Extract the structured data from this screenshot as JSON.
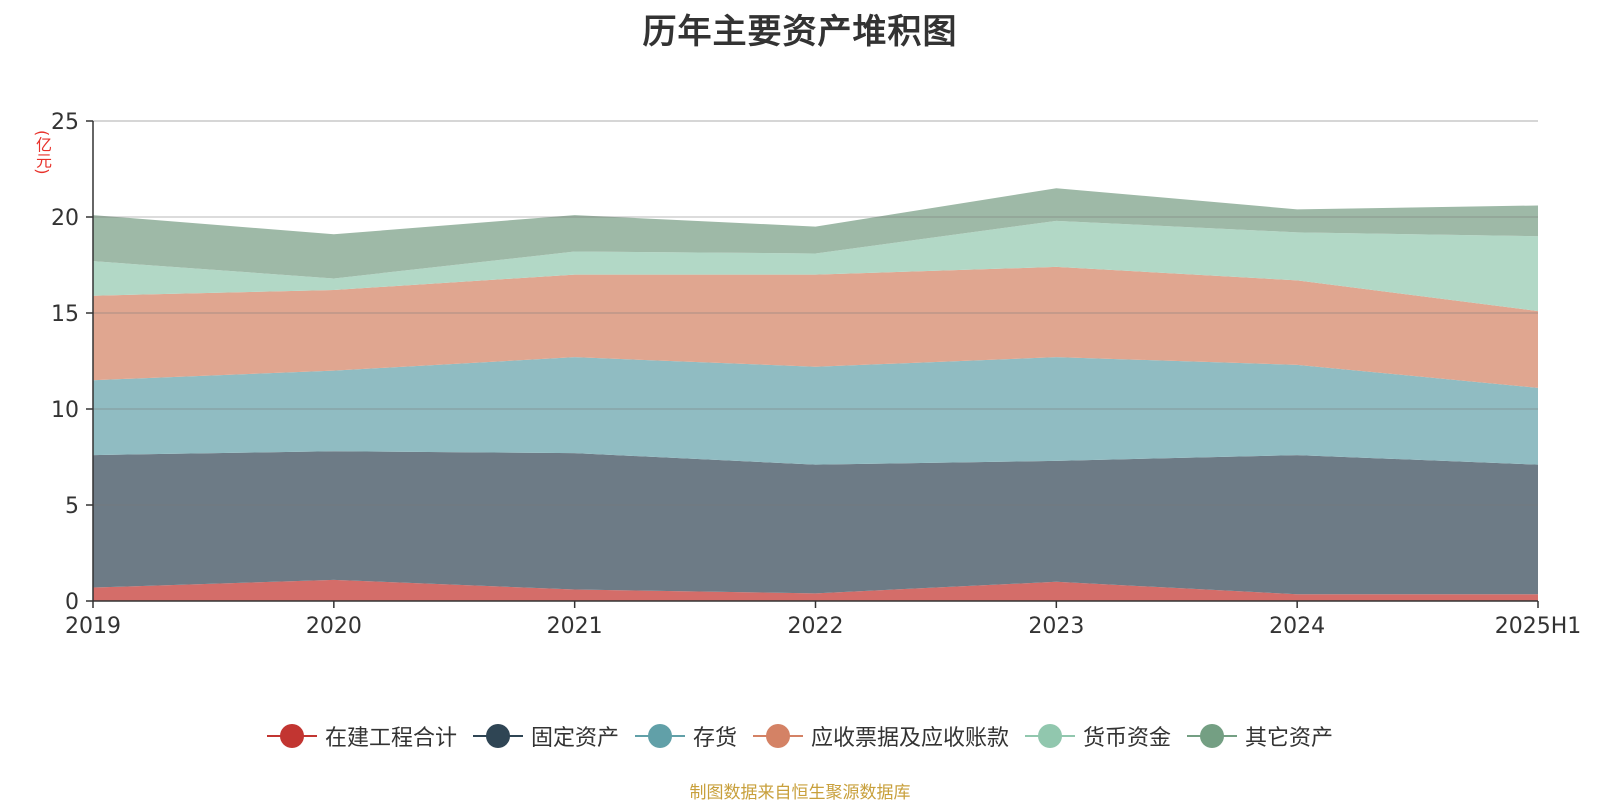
{
  "title": "历年主要资产堆积图",
  "unit": "(亿元)",
  "source": "制图数据来自恒生聚源数据库",
  "chart_data": {
    "type": "area",
    "stacked": true,
    "title": "历年主要资产堆积图",
    "ylabel": "(亿元)",
    "categories": [
      "2019",
      "2020",
      "2021",
      "2022",
      "2023",
      "2024",
      "2025H1"
    ],
    "ylim": [
      0,
      25
    ],
    "yticks": [
      0,
      5,
      10,
      15,
      20,
      25
    ],
    "grid": true,
    "legend_position": "bottom",
    "series": [
      {
        "name": "在建工程合计",
        "color": "#c23531",
        "fill": "#d46d69",
        "values": [
          0.7,
          1.1,
          0.6,
          0.4,
          1.0,
          0.35,
          0.35
        ]
      },
      {
        "name": "固定资产",
        "color": "#2f4554",
        "fill": "#6d7b86",
        "values": [
          6.9,
          6.7,
          7.1,
          6.7,
          6.3,
          7.25,
          6.75
        ]
      },
      {
        "name": "存货",
        "color": "#61a0a8",
        "fill": "#90bcc2",
        "values": [
          3.9,
          4.2,
          5.0,
          5.1,
          5.4,
          4.7,
          4.0
        ]
      },
      {
        "name": "应收票据及应收账款",
        "color": "#d48265",
        "fill": "#e0a690",
        "values": [
          4.4,
          4.2,
          4.3,
          4.8,
          4.7,
          4.4,
          4.0
        ]
      },
      {
        "name": "货币资金",
        "color": "#91c7ae",
        "fill": "#b2d8c6",
        "values": [
          1.8,
          0.6,
          1.2,
          1.1,
          2.4,
          2.5,
          3.9
        ]
      },
      {
        "name": "其它资产",
        "color": "#749f83",
        "fill": "#9eb9a7",
        "values": [
          2.4,
          2.3,
          1.9,
          1.4,
          1.7,
          1.2,
          1.6
        ]
      }
    ]
  }
}
